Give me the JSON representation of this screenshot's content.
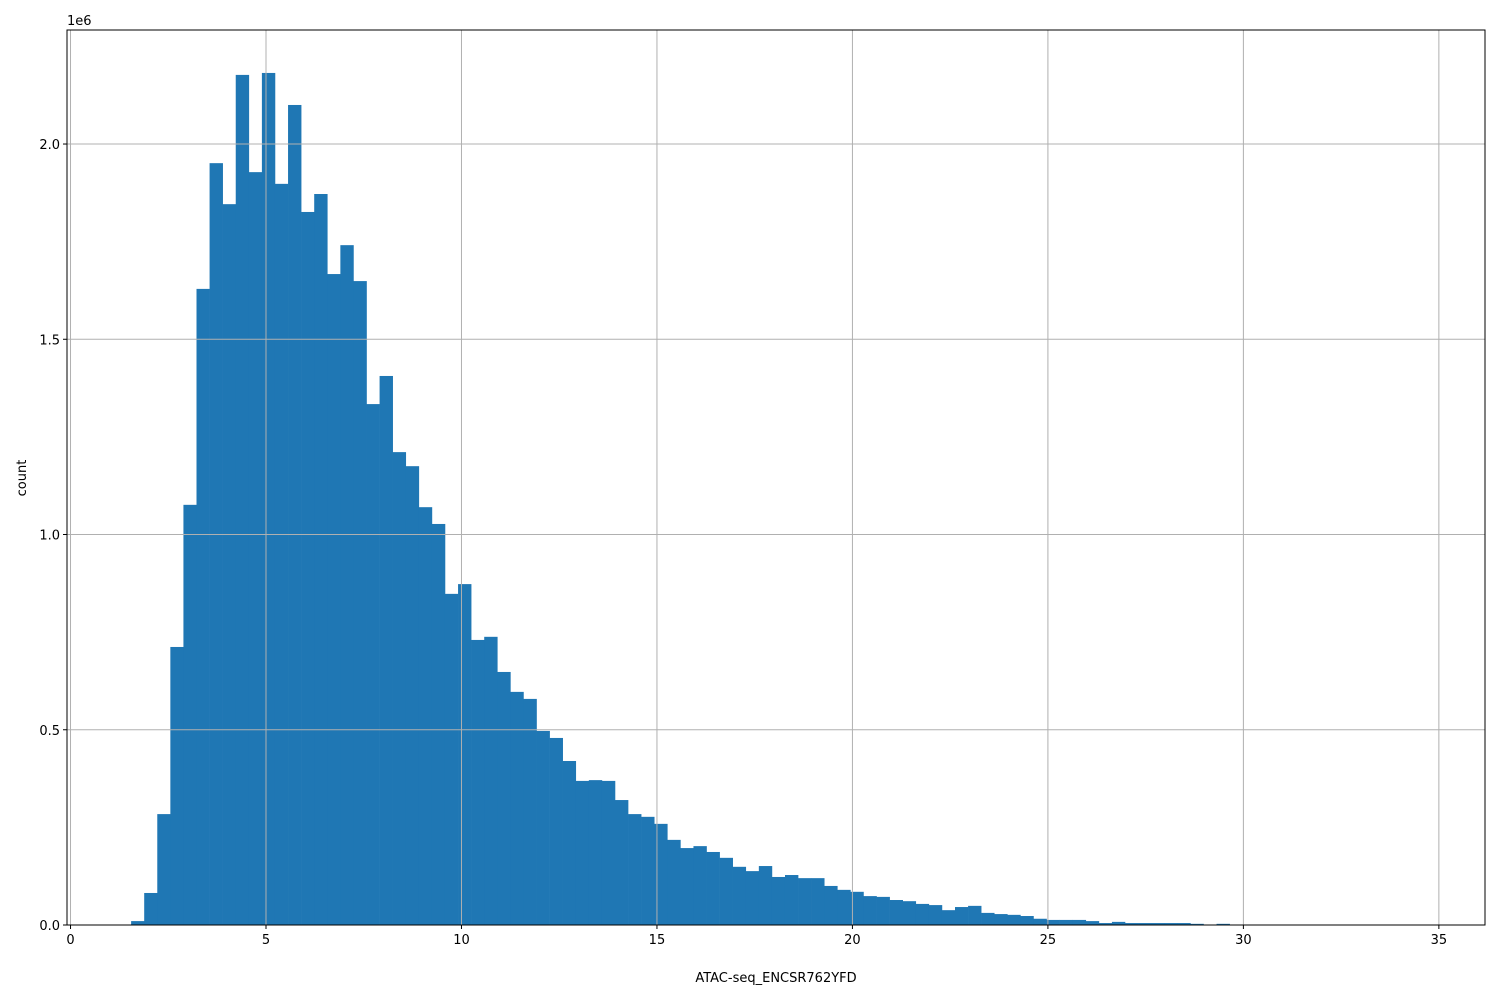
{
  "chart_data": {
    "type": "bar",
    "subtype": "histogram",
    "title": "",
    "xlabel": "ATAC-seq_ENCSR762YFD",
    "ylabel": "count",
    "y_offset_label": "1e6",
    "y_multiplier": 1000000,
    "xlim": [
      -0.09,
      36.18
    ],
    "ylim": [
      0,
      2.292
    ],
    "xticks": [
      0,
      5,
      10,
      15,
      20,
      25,
      30,
      35
    ],
    "xtick_labels": [
      "0",
      "5",
      "10",
      "15",
      "20",
      "25",
      "30",
      "35"
    ],
    "yticks": [
      0,
      0.5,
      1.0,
      1.5,
      2.0
    ],
    "ytick_labels": [
      "0.0",
      "0.5",
      "1.0",
      "1.5",
      "2.0"
    ],
    "grid": true,
    "bar_color": "#1f77b4",
    "grid_color": "#b0b0b0",
    "bin_start": 1.55,
    "bin_width": 0.3345,
    "values": [
      0.01,
      0.082,
      0.284,
      0.712,
      1.076,
      1.629,
      1.951,
      1.846,
      2.177,
      1.928,
      2.182,
      1.898,
      2.1,
      1.826,
      1.872,
      1.667,
      1.741,
      1.649,
      1.334,
      1.406,
      1.211,
      1.175,
      1.07,
      1.027,
      0.848,
      0.873,
      0.73,
      0.738,
      0.648,
      0.597,
      0.579,
      0.497,
      0.479,
      0.42,
      0.369,
      0.371,
      0.369,
      0.32,
      0.284,
      0.277,
      0.259,
      0.218,
      0.197,
      0.202,
      0.187,
      0.172,
      0.149,
      0.138,
      0.151,
      0.123,
      0.128,
      0.12,
      0.12,
      0.1,
      0.09,
      0.085,
      0.074,
      0.072,
      0.064,
      0.061,
      0.054,
      0.051,
      0.038,
      0.046,
      0.049,
      0.031,
      0.028,
      0.026,
      0.023,
      0.016,
      0.013,
      0.013,
      0.013,
      0.01,
      0.005,
      0.008,
      0.005,
      0.005,
      0.005,
      0.005,
      0.005,
      0.003,
      0.0,
      0.003,
      0.0,
      0.0,
      0.0,
      0.0,
      0.0,
      0.0,
      0.0,
      0.0,
      0.0,
      0.0,
      0.0,
      0.0,
      0.0,
      0.0,
      0.0,
      0.001
    ]
  }
}
